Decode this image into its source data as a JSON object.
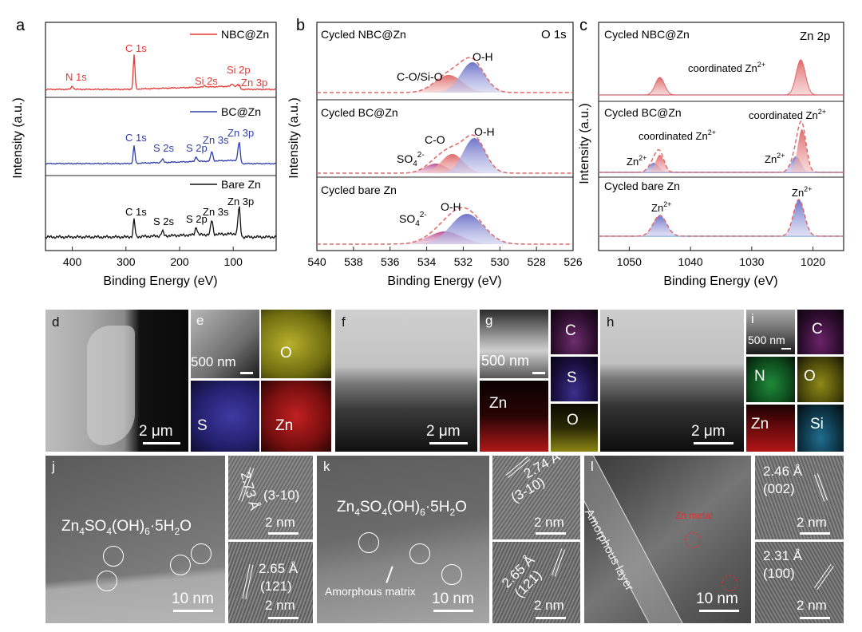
{
  "colors": {
    "nbc": "#e53935",
    "bc": "#2f3ea8",
    "bare": "#111111",
    "fit_red": "#e06666",
    "peak_blue": "#8a8fd1",
    "peak_red": "#e9a0a0"
  },
  "chart_data": [
    {
      "type": "line",
      "panel": "a",
      "xlabel": "Binding Energy (eV)",
      "ylabel": "Intensity (a.u.)",
      "xlim": [
        450,
        20
      ],
      "xticks": [
        400,
        300,
        200,
        100
      ],
      "series": [
        {
          "name": "NBC@Zn",
          "peaks": [
            {
              "label": "N 1s",
              "x": 400
            },
            {
              "label": "C 1s",
              "x": 284.8
            },
            {
              "label": "Si 2s",
              "x": 153
            },
            {
              "label": "Si 2p",
              "x": 102
            },
            {
              "label": "Zn 3p",
              "x": 89
            }
          ]
        },
        {
          "name": "BC@Zn",
          "peaks": [
            {
              "label": "C 1s",
              "x": 284.8
            },
            {
              "label": "S 2s",
              "x": 232
            },
            {
              "label": "S 2p",
              "x": 169
            },
            {
              "label": "Zn 3s",
              "x": 140
            },
            {
              "label": "Zn 3p",
              "x": 89
            }
          ]
        },
        {
          "name": "Bare Zn",
          "peaks": [
            {
              "label": "C 1s",
              "x": 284.8
            },
            {
              "label": "S 2s",
              "x": 232
            },
            {
              "label": "S 2p",
              "x": 169
            },
            {
              "label": "Zn 3s",
              "x": 140
            },
            {
              "label": "Zn 3p",
              "x": 89
            }
          ]
        }
      ]
    },
    {
      "type": "line",
      "panel": "b",
      "title": "O 1s",
      "xlabel": "Binding Energy (eV)",
      "ylabel": "Intensity (a.u.)",
      "xlim": [
        540,
        526
      ],
      "xticks": [
        540,
        538,
        536,
        534,
        532,
        530,
        528,
        526
      ],
      "series": [
        {
          "name": "Cycled NBC@Zn",
          "peaks": [
            {
              "label": "C-O/Si-O",
              "x": 532.8
            },
            {
              "label": "O-H",
              "x": 531.5
            }
          ]
        },
        {
          "name": "Cycled BC@Zn",
          "peaks": [
            {
              "label": "SO4 2-",
              "x": 533.5
            },
            {
              "label": "C-O",
              "x": 532.6
            },
            {
              "label": "O-H",
              "x": 531.4
            }
          ]
        },
        {
          "name": "Cycled bare Zn",
          "peaks": [
            {
              "label": "SO4 2-",
              "x": 533.0
            },
            {
              "label": "O-H",
              "x": 531.8
            }
          ]
        }
      ]
    },
    {
      "type": "line",
      "panel": "c",
      "title": "Zn 2p",
      "xlabel": "Binding Energy (eV)",
      "ylabel": "Intensity (a.u.)",
      "xlim": [
        1055,
        1015
      ],
      "xticks": [
        1050,
        1040,
        1030,
        1020
      ],
      "series": [
        {
          "name": "Cycled NBC@Zn",
          "peaks": [
            {
              "label": "coordinated Zn2+",
              "x": 1045
            },
            {
              "label": "coordinated Zn2+",
              "x": 1022
            }
          ]
        },
        {
          "name": "Cycled BC@Zn",
          "peaks": [
            {
              "label": "Zn2+",
              "x": 1046
            },
            {
              "label": "coordinated Zn2+",
              "x": 1045
            },
            {
              "label": "Zn2+",
              "x": 1022.8
            },
            {
              "label": "coordinated Zn2+",
              "x": 1021.8
            }
          ]
        },
        {
          "name": "Cycled bare Zn",
          "peaks": [
            {
              "label": "Zn2+",
              "x": 1045
            },
            {
              "label": "Zn2+",
              "x": 1022.3
            }
          ]
        }
      ]
    }
  ],
  "panels": {
    "a": {
      "letter": "a",
      "legend_nbc": "NBC@Zn",
      "legend_bc": "BC@Zn",
      "legend_bare": "Bare Zn",
      "ylabel": "Intensity (a.u.)",
      "xlabel": "Binding Energy (eV)",
      "tick_400": "400",
      "tick_300": "300",
      "tick_200": "200",
      "tick_100": "100",
      "p_n1s": "N 1s",
      "p_c1s": "C 1s",
      "p_si2s": "Si 2s",
      "p_si2p": "Si 2p",
      "p_zn3p": "Zn 3p",
      "p_s2s": "S 2s",
      "p_s2p": "S 2p",
      "p_zn3s": "Zn 3s"
    },
    "b": {
      "letter": "b",
      "title": "O 1s",
      "s1": "Cycled NBC@Zn",
      "s2": "Cycled BC@Zn",
      "s3": "Cycled bare Zn",
      "co_sio": "C-O/Si-O",
      "oh": "O-H",
      "co": "C-O",
      "so4": "SO",
      "so4_sub": "4",
      "so4_sup": "2-",
      "ylabel": "Intensity (a.u.)",
      "xlabel": "Binding Energy (eV)",
      "ticks": [
        "540",
        "538",
        "536",
        "534",
        "532",
        "530",
        "528",
        "526"
      ]
    },
    "c": {
      "letter": "c",
      "title": "Zn 2p",
      "s1": "Cycled NBC@Zn",
      "s2": "Cycled BC@Zn",
      "s3": "Cycled bare Zn",
      "coord": "coordinated Zn",
      "zn": "Zn",
      "sup": "2+",
      "ylabel": "Intensity (a.u.)",
      "xlabel": "Binding Energy (eV)",
      "ticks": [
        "1050",
        "1040",
        "1030",
        "1020"
      ]
    },
    "d": {
      "letter": "d",
      "scale": "2 μm"
    },
    "e": {
      "letter": "e",
      "scale": "500 nm",
      "el_o": "O",
      "el_s": "S",
      "el_zn": "Zn"
    },
    "f": {
      "letter": "f",
      "scale": "2 μm"
    },
    "g": {
      "letter": "g",
      "scale": "500 nm",
      "el_c": "C",
      "el_s": "S",
      "el_zn": "Zn",
      "el_o": "O"
    },
    "h": {
      "letter": "h",
      "scale": "2 μm"
    },
    "i": {
      "letter": "i",
      "scale": "500 nm",
      "el_c": "C",
      "el_n": "N",
      "el_o": "O",
      "el_zn": "Zn",
      "el_si": "Si"
    },
    "j": {
      "letter": "j",
      "scale": "10 nm",
      "formula_a": "Zn",
      "formula_b": "4",
      "formula_c": "SO",
      "formula_d": "4",
      "formula_e": "(OH)",
      "formula_f": "6",
      "formula_g": "·5H",
      "formula_h": "2",
      "formula_i": "O",
      "d1": "2.73 Å",
      "h1": "(3-10)",
      "s1": "2 nm",
      "d2": "2.65 Å",
      "h2": "(121)",
      "s2": "2 nm"
    },
    "k": {
      "letter": "k",
      "scale": "10 nm",
      "amorphous_matrix": "Amorphous matrix",
      "d1": "2.74 Å",
      "h1": "(3-10)",
      "s1": "2 nm",
      "d2": "2.65 Å",
      "h2": "(121)",
      "s2": "2 nm"
    },
    "l": {
      "letter": "l",
      "scale": "10 nm",
      "amorphous_layer": "Amorphous layer",
      "zn_metal": "Zn metal",
      "d1": "2.46 Å",
      "h1": "(002)",
      "s1": "2 nm",
      "d2": "2.31 Å",
      "h2": "(100)",
      "s2": "2 nm"
    }
  }
}
